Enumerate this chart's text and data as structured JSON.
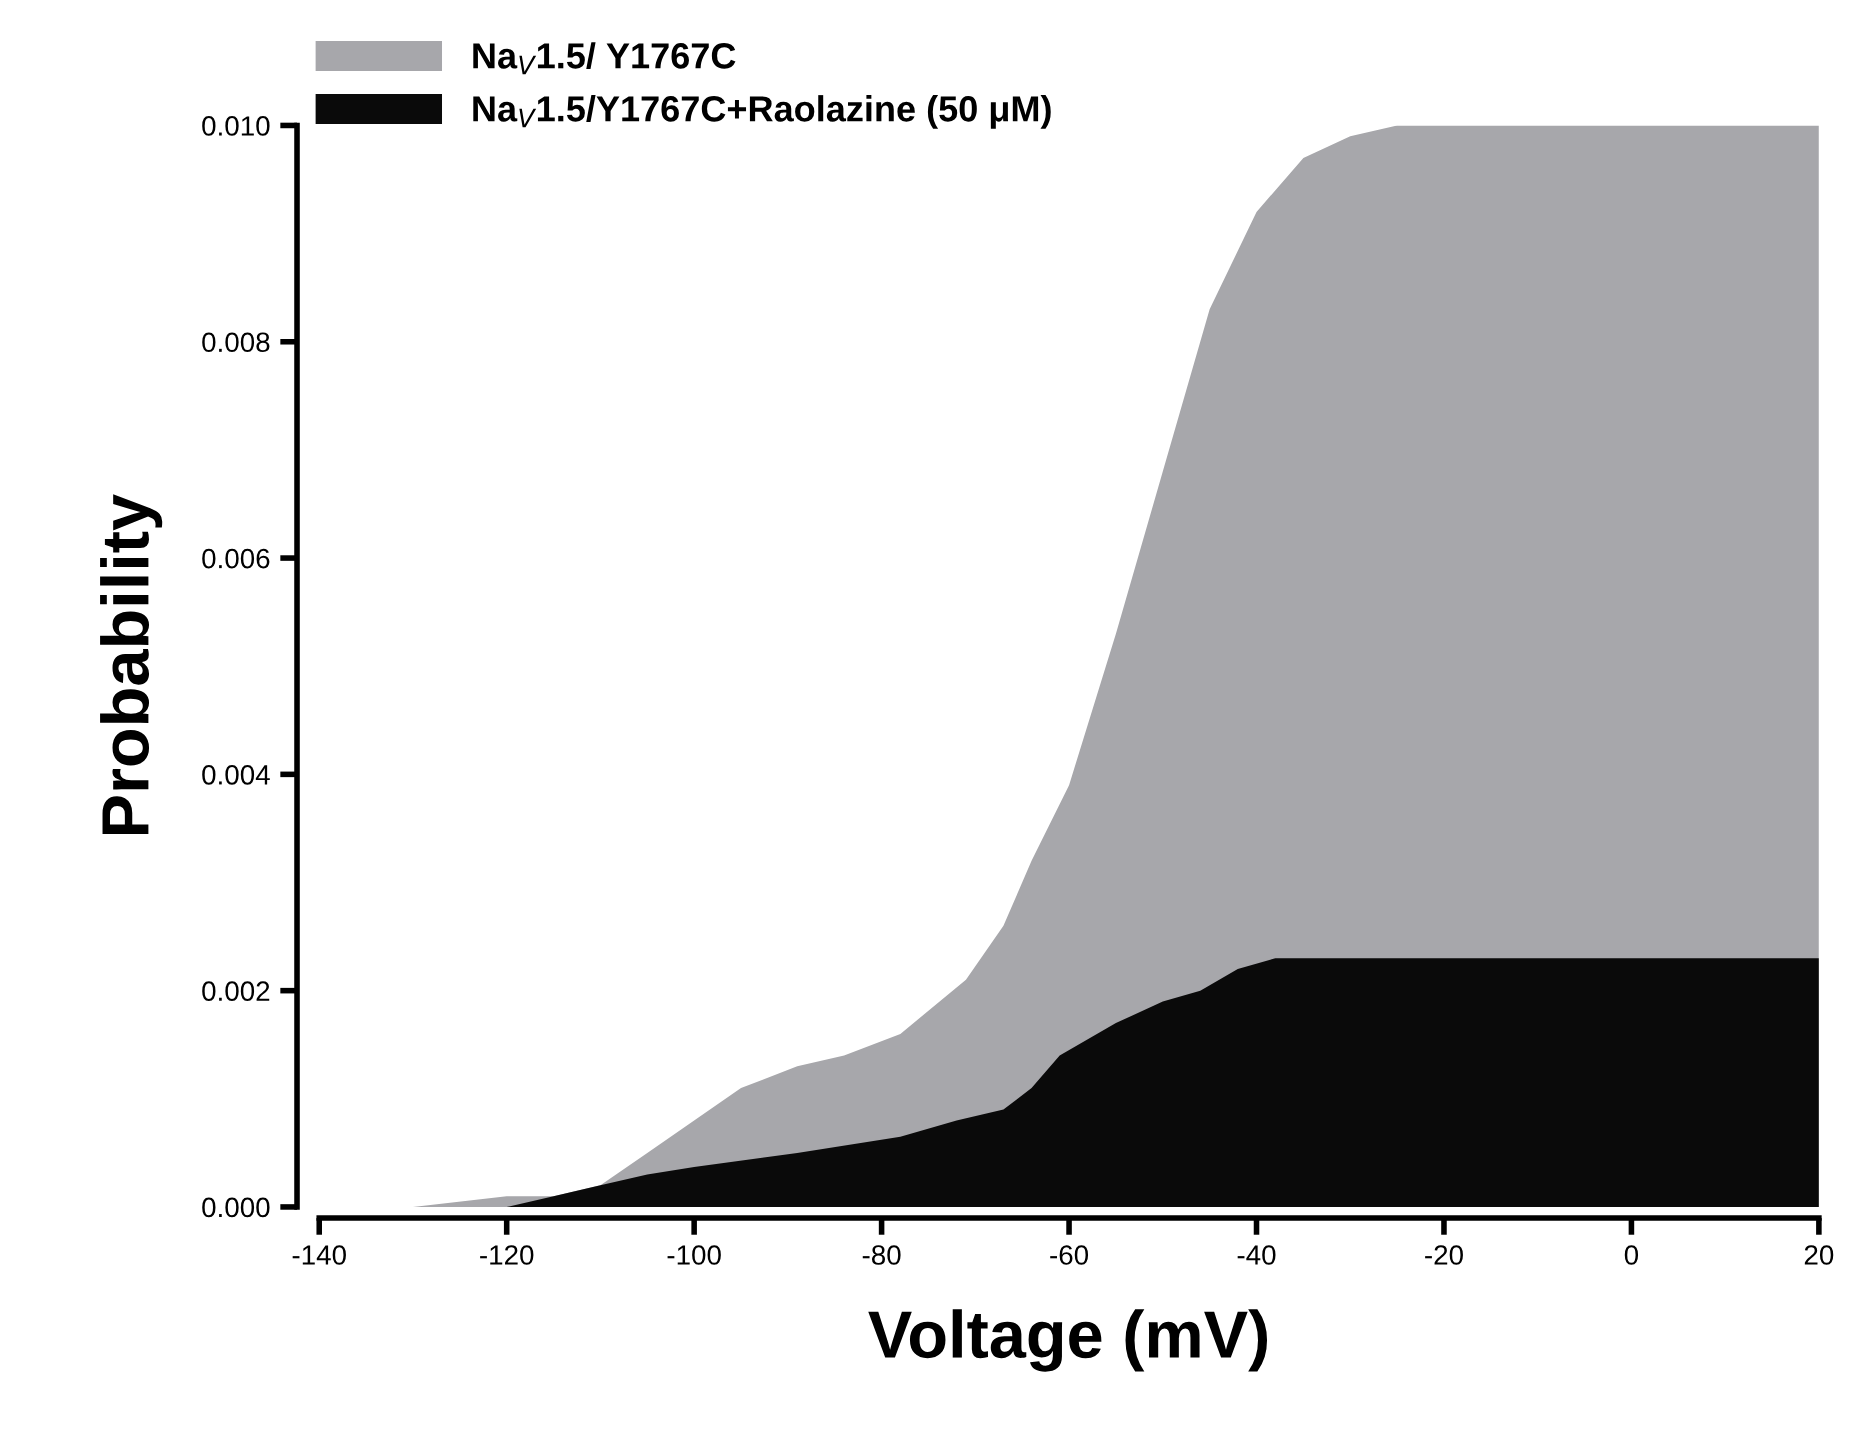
{
  "chart_data": {
    "type": "area",
    "xlabel": "Voltage (mV)",
    "ylabel": "Probability",
    "xlim": [
      -140,
      20
    ],
    "xticks": [
      -140,
      -120,
      -100,
      -80,
      -60,
      -40,
      -20,
      0,
      20
    ],
    "ylim": [
      0,
      0.01
    ],
    "yticks": [
      {
        "value": 0,
        "label": "0.000"
      },
      {
        "value": 0.002,
        "label": "0.002"
      },
      {
        "value": 0.004,
        "label": "0.004"
      },
      {
        "value": 0.006,
        "label": "0.006"
      },
      {
        "value": 0.008,
        "label": "0.008"
      },
      {
        "value": 0.01,
        "label": "0.010"
      }
    ],
    "grid": false,
    "legend": "top left",
    "series": [
      {
        "name": "Na$_{V}$1.5/ Y1767C",
        "color": "#a7a7ab",
        "x": [
          -140,
          -130,
          -120,
          -115,
          -110,
          -105,
          -100,
          -95,
          -89,
          -84,
          -78,
          -71,
          -67,
          -64,
          -60,
          -55,
          -50,
          -45,
          -40,
          -35,
          -30,
          -25,
          -20,
          0,
          20
        ],
        "values": [
          0,
          0,
          0.0001,
          0.0001,
          0.0002,
          0.0005,
          0.0008,
          0.0011,
          0.0013,
          0.0014,
          0.0016,
          0.0021,
          0.0026,
          0.0032,
          0.0039,
          0.0053,
          0.0068,
          0.0083,
          0.0092,
          0.0097,
          0.0099,
          0.01,
          0.01,
          0.01,
          0.01
        ]
      },
      {
        "name": "Na$_{V}$1.5/Y1767C+Raolazine (50 μM)",
        "color": "#0a0a0a",
        "x": [
          -140,
          -130,
          -120,
          -115,
          -110,
          -105,
          -100,
          -89,
          -78,
          -72,
          -67,
          -64,
          -61,
          -55,
          -50,
          -46,
          -42,
          -38,
          -35,
          -30,
          0,
          20
        ],
        "values": [
          0,
          0,
          0,
          0.0001,
          0.0002,
          0.0003,
          0.00037,
          0.0005,
          0.00065,
          0.0008,
          0.0009,
          0.0011,
          0.0014,
          0.0017,
          0.0019,
          0.002,
          0.0022,
          0.0023,
          0.0023,
          0.0023,
          0.0023,
          0.0023
        ]
      }
    ]
  }
}
